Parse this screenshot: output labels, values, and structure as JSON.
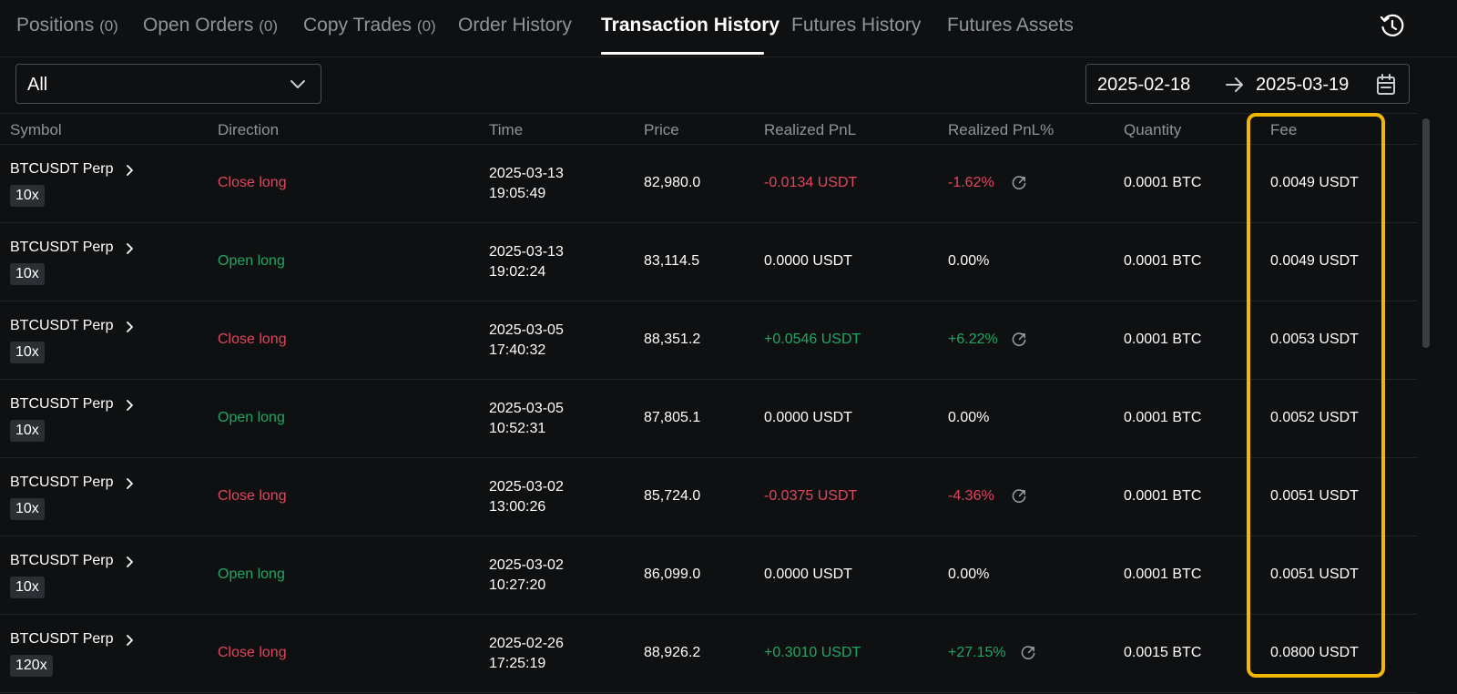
{
  "tabs": [
    {
      "label": "Positions",
      "count": "(0)"
    },
    {
      "label": "Open Orders",
      "count": "(0)"
    },
    {
      "label": "Copy Trades",
      "count": "(0)"
    },
    {
      "label": "Order History"
    },
    {
      "label": "Transaction History",
      "active": true
    },
    {
      "label": "Futures History"
    },
    {
      "label": "Futures Assets"
    }
  ],
  "filter": {
    "value": "All"
  },
  "date_range": {
    "start": "2025-02-18",
    "end": "2025-03-19"
  },
  "columns": [
    "Symbol",
    "Direction",
    "Time",
    "Price",
    "Realized PnL",
    "Realized PnL%",
    "Quantity",
    "Fee"
  ],
  "rows": [
    {
      "symbol": "BTCUSDT Perp",
      "leverage": "10x",
      "direction": "Close long",
      "date": "2025-03-13",
      "clock": "19:05:49",
      "price": "82,980.0",
      "pnl": "-0.0134 USDT",
      "pnl_pct": "-1.62%",
      "qty": "0.0001 BTC",
      "fee": "0.0049 USDT",
      "tone": "red",
      "share": true
    },
    {
      "symbol": "BTCUSDT Perp",
      "leverage": "10x",
      "direction": "Open long",
      "date": "2025-03-13",
      "clock": "19:02:24",
      "price": "83,114.5",
      "pnl": "0.0000 USDT",
      "pnl_pct": "0.00%",
      "qty": "0.0001 BTC",
      "fee": "0.0049 USDT",
      "tone": "neutral",
      "share": false
    },
    {
      "symbol": "BTCUSDT Perp",
      "leverage": "10x",
      "direction": "Close long",
      "date": "2025-03-05",
      "clock": "17:40:32",
      "price": "88,351.2",
      "pnl": "+0.0546 USDT",
      "pnl_pct": "+6.22%",
      "qty": "0.0001 BTC",
      "fee": "0.0053 USDT",
      "tone": "green",
      "share": true
    },
    {
      "symbol": "BTCUSDT Perp",
      "leverage": "10x",
      "direction": "Open long",
      "date": "2025-03-05",
      "clock": "10:52:31",
      "price": "87,805.1",
      "pnl": "0.0000 USDT",
      "pnl_pct": "0.00%",
      "qty": "0.0001 BTC",
      "fee": "0.0052 USDT",
      "tone": "neutral",
      "share": false
    },
    {
      "symbol": "BTCUSDT Perp",
      "leverage": "10x",
      "direction": "Close long",
      "date": "2025-03-02",
      "clock": "13:00:26",
      "price": "85,724.0",
      "pnl": "-0.0375 USDT",
      "pnl_pct": "-4.36%",
      "qty": "0.0001 BTC",
      "fee": "0.0051 USDT",
      "tone": "red",
      "share": true
    },
    {
      "symbol": "BTCUSDT Perp",
      "leverage": "10x",
      "direction": "Open long",
      "date": "2025-03-02",
      "clock": "10:27:20",
      "price": "86,099.0",
      "pnl": "0.0000 USDT",
      "pnl_pct": "0.00%",
      "qty": "0.0001 BTC",
      "fee": "0.0051 USDT",
      "tone": "neutral",
      "share": false
    },
    {
      "symbol": "BTCUSDT Perp",
      "leverage": "120x",
      "direction": "Close long",
      "date": "2025-02-26",
      "clock": "17:25:19",
      "price": "88,926.2",
      "pnl": "+0.3010 USDT",
      "pnl_pct": "+27.15%",
      "qty": "0.0015 BTC",
      "fee": "0.0800 USDT",
      "tone": "green",
      "share": true
    }
  ],
  "colors": {
    "background": "#0f1011",
    "negative": "#e0475e",
    "positive": "#1fa863",
    "highlight": "#f2b705",
    "muted": "#8f949a"
  },
  "icons": {
    "history": "history-clock-icon",
    "select": "chevron-down-icon",
    "range": "arrow-right-icon",
    "calendar": "calendar-icon",
    "symbol": "chevron-right-icon",
    "share": "share-icon"
  }
}
